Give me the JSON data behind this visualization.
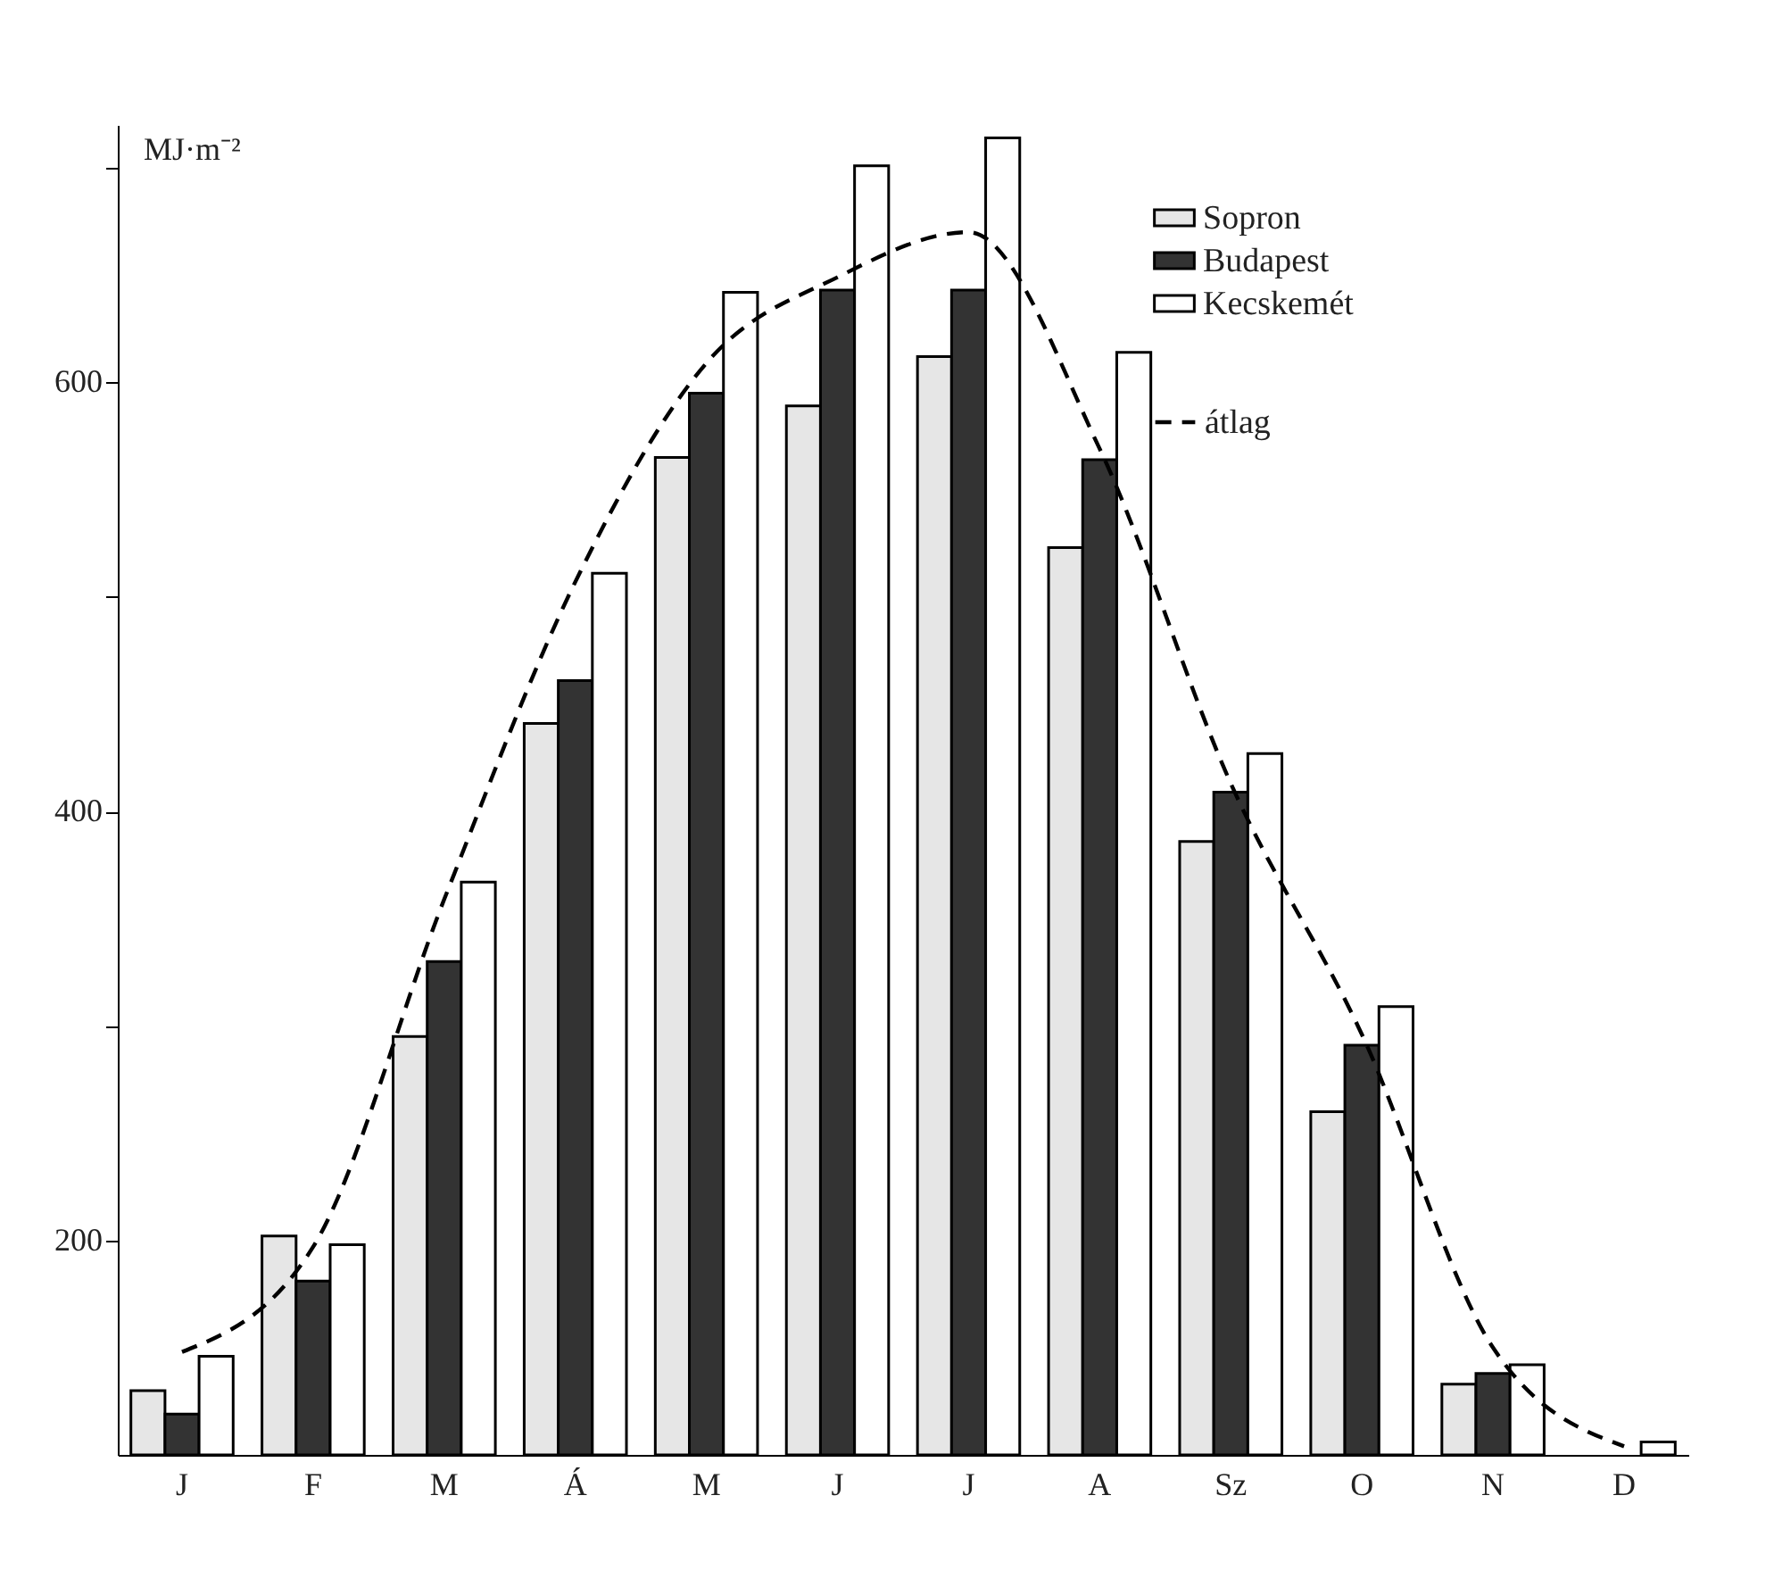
{
  "chart_data": {
    "type": "bar",
    "ylabel": "MJ·m⁻²",
    "categories": [
      "J",
      "F",
      "M",
      "Á",
      "M",
      "J",
      "J",
      "A",
      "Sz",
      "O",
      "N",
      "D"
    ],
    "series": [
      {
        "name": "Sopron",
        "color": "#e6e6e6",
        "values": [
          130,
          202,
          295,
          441,
          565,
          589,
          612,
          523,
          386,
          260,
          133,
          null
        ]
      },
      {
        "name": "Budapest",
        "color": "#333333",
        "values": [
          119,
          181,
          330,
          461,
          595,
          643,
          643,
          564,
          409,
          291,
          138,
          null
        ]
      },
      {
        "name": "Kecskemét",
        "color": "#ffffff",
        "values": [
          146,
          198,
          367,
          511,
          642,
          701,
          714,
          614,
          427,
          309,
          142,
          106
        ]
      },
      {
        "name": "átlag",
        "type": "line",
        "color": "#000000",
        "line_style": "dashed",
        "values": [
          148,
          197,
          359,
          507,
          609,
          649,
          670,
          569,
          413,
          296,
          150,
          104
        ]
      }
    ],
    "ylim": [
      100,
      720
    ],
    "yticks": [
      200,
      {
        "value": 300,
        "label": null
      },
      400,
      {
        "value": 500,
        "label": null
      },
      600,
      {
        "value": 700,
        "label": null
      }
    ],
    "legend": "top right"
  }
}
